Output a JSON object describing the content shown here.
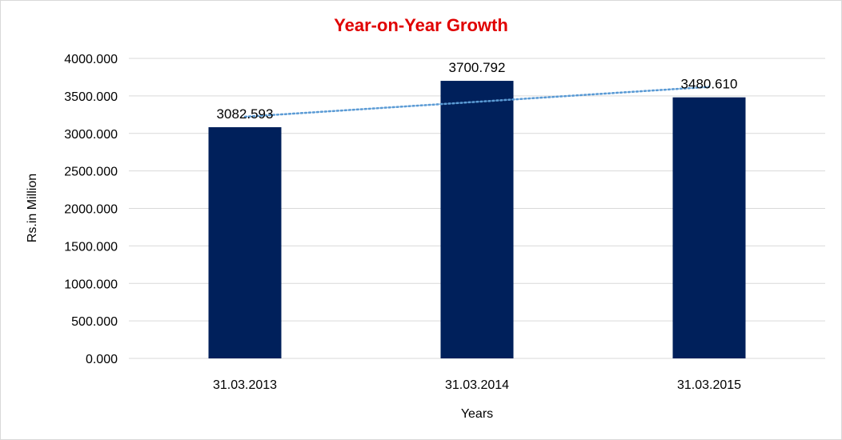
{
  "chart_data": {
    "type": "bar",
    "title": "Year-on-Year Growth",
    "xlabel": "Years",
    "ylabel": "Rs.in Million",
    "categories": [
      "31.03.2013",
      "31.03.2014",
      "31.03.2015"
    ],
    "values": [
      3082.593,
      3700.792,
      3480.61
    ],
    "value_labels": [
      "3082.593",
      "3700.792",
      "3480.610"
    ],
    "ylim": [
      0,
      4000
    ],
    "yticks": [
      0,
      500,
      1000,
      1500,
      2000,
      2500,
      3000,
      3500,
      4000
    ],
    "ytick_labels": [
      "0.000",
      "500.000",
      "1000.000",
      "1500.000",
      "2000.000",
      "2500.000",
      "3000.000",
      "3500.000",
      "4000.000"
    ],
    "grid": true,
    "legend": "none",
    "trendline": {
      "type": "linear",
      "style": "dotted",
      "color": "#5b9bd5"
    },
    "colors": {
      "bar": "#00205b",
      "title": "#e00000",
      "grid": "#d9d9d9"
    }
  }
}
